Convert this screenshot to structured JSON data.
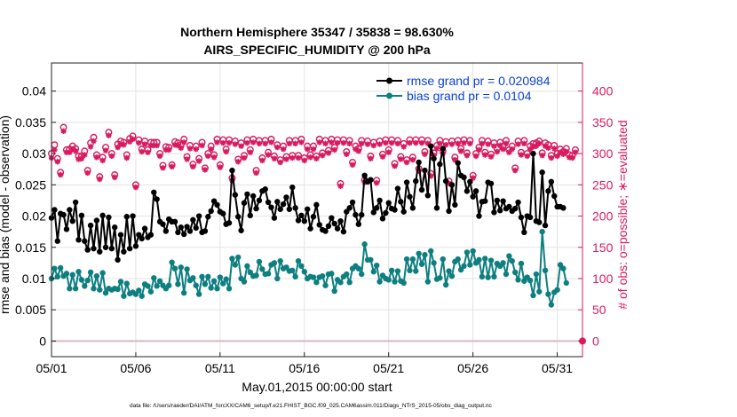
{
  "chart_data": {
    "type": "line",
    "title": "Northern Hemisphere 35347 / 35838 = 98.630%",
    "subtitle": "AIRS_SPECIFIC_HUMIDITY @ 200 hPa",
    "xlabel": "May.01,2015 00:00:00 start",
    "ylabel": "rmse and bias (model - observation)",
    "y2label": "# of obs: o=possible; ∗=evaluated",
    "footnote": "data file: /Users/raeder/DAI/ATM_forcXX/CAM6_setup/f.e21.FHIST_BGC.f09_025.CAM6assim.011/Diags_NTrS_2015-05/obs_diag_output.nc",
    "xlim": [
      1,
      32.5
    ],
    "ylim": [
      -0.0025,
      0.0445
    ],
    "y2lim": [
      -25,
      445
    ],
    "grid": true,
    "xticks": [
      1,
      6,
      11,
      16,
      21,
      26,
      31
    ],
    "xtick_labels": [
      "05/01",
      "05/06",
      "05/11",
      "05/16",
      "05/21",
      "05/26",
      "05/31"
    ],
    "yticks": [
      0,
      0.005,
      0.01,
      0.015,
      0.02,
      0.025,
      0.03,
      0.035,
      0.04
    ],
    "ytick_labels": [
      "0",
      "0.005",
      "0.01",
      "0.015",
      "0.02",
      "0.025",
      "0.03",
      "0.035",
      "0.04"
    ],
    "y2ticks": [
      0,
      50,
      100,
      150,
      200,
      250,
      300,
      350,
      400
    ],
    "y2tick_labels": [
      "0",
      "50",
      "100",
      "150",
      "200",
      "250",
      "300",
      "350",
      "400"
    ],
    "colors": {
      "rmse": "#000000",
      "bias": "#0e7f80",
      "obs": "#d81b60",
      "legend_text": "#0a3fd6",
      "zero_line": "#d5b5c5",
      "grid": "#e3e3e3"
    },
    "legend_position": "top-right",
    "series": [
      {
        "name": "rmse grand pr = 0.020984",
        "axis": "left",
        "style": "line-dot",
        "values": [
          0.0197,
          0.021,
          0.016,
          0.0204,
          0.0202,
          0.0179,
          0.021,
          0.0192,
          0.0222,
          0.0162,
          0.0201,
          0.016,
          0.0146,
          0.0185,
          0.0148,
          0.0193,
          0.0143,
          0.0201,
          0.015,
          0.0198,
          0.0148,
          0.0182,
          0.013,
          0.017,
          0.0143,
          0.0199,
          0.0148,
          0.02,
          0.0152,
          0.017,
          0.0164,
          0.018,
          0.0166,
          0.017,
          0.0238,
          0.0227,
          0.0191,
          0.0187,
          0.0176,
          0.0195,
          0.0191,
          0.0191,
          0.0174,
          0.0182,
          0.0171,
          0.0183,
          0.0176,
          0.0194,
          0.0181,
          0.02,
          0.0174,
          0.0176,
          0.0199,
          0.0208,
          0.0224,
          0.0218,
          0.0207,
          0.0204,
          0.0187,
          0.0189,
          0.0273,
          0.0234,
          0.0199,
          0.0177,
          0.0221,
          0.0235,
          0.0201,
          0.0232,
          0.0212,
          0.0225,
          0.024,
          0.0243,
          0.0222,
          0.0214,
          0.0197,
          0.0223,
          0.0211,
          0.0219,
          0.023,
          0.0211,
          0.0246,
          0.0213,
          0.0193,
          0.0201,
          0.0192,
          0.0211,
          0.018,
          0.0199,
          0.0218,
          0.0186,
          0.0178,
          0.0176,
          0.0184,
          0.0197,
          0.0188,
          0.018,
          0.0192,
          0.0175,
          0.0207,
          0.0213,
          0.0222,
          0.0202,
          0.0187,
          0.0202,
          0.0265,
          0.0255,
          0.0258,
          0.0206,
          0.0213,
          0.0225,
          0.0196,
          0.0205,
          0.0221,
          0.0212,
          0.021,
          0.0244,
          0.0223,
          0.0207,
          0.0254,
          0.0231,
          0.0213,
          0.0256,
          0.0286,
          0.0242,
          0.0273,
          0.0233,
          0.0312,
          0.0292,
          0.0213,
          0.0283,
          0.0308,
          0.0256,
          0.0208,
          0.025,
          0.0218,
          0.0285,
          0.0265,
          0.0262,
          0.024,
          0.0255,
          0.0231,
          0.024,
          0.02,
          0.0223,
          0.0224,
          0.0254,
          0.0252,
          0.0206,
          0.0225,
          0.0209,
          0.0224,
          0.0212,
          0.0215,
          0.0208,
          0.0212,
          0.0222,
          0.0198,
          0.0174,
          0.02,
          0.0198,
          0.03,
          0.0192,
          0.019,
          0.027,
          0.0185,
          0.024,
          0.0255,
          0.0232,
          0.0215,
          0.0215,
          0.0213
        ]
      },
      {
        "name": "bias grand pr = 0.0104",
        "axis": "left",
        "style": "line-dot",
        "values": [
          0.01,
          0.0116,
          0.0103,
          0.0117,
          0.0104,
          0.0108,
          0.0084,
          0.0106,
          0.0084,
          0.0111,
          0.0098,
          0.0088,
          0.0097,
          0.011,
          0.0084,
          0.0104,
          0.0082,
          0.0109,
          0.0077,
          0.0084,
          0.0082,
          0.0084,
          0.0083,
          0.0095,
          0.0072,
          0.0092,
          0.0076,
          0.0078,
          0.0075,
          0.0081,
          0.0072,
          0.0091,
          0.0088,
          0.0079,
          0.0101,
          0.0088,
          0.0096,
          0.0089,
          0.0084,
          0.0089,
          0.0126,
          0.0116,
          0.0091,
          0.0118,
          0.0077,
          0.0115,
          0.0097,
          0.0101,
          0.0089,
          0.0075,
          0.0103,
          0.0091,
          0.0103,
          0.0085,
          0.0096,
          0.0084,
          0.0102,
          0.0092,
          0.0099,
          0.0084,
          0.0132,
          0.0122,
          0.0134,
          0.01,
          0.0095,
          0.012,
          0.011,
          0.0104,
          0.0105,
          0.0127,
          0.0115,
          0.0107,
          0.0108,
          0.0122,
          0.0125,
          0.01,
          0.0128,
          0.0116,
          0.0118,
          0.0112,
          0.0113,
          0.0103,
          0.0128,
          0.012,
          0.0111,
          0.01,
          0.0103,
          0.0102,
          0.0094,
          0.0102,
          0.0104,
          0.0089,
          0.0107,
          0.0108,
          0.008,
          0.0098,
          0.0094,
          0.0103,
          0.0107,
          0.0094,
          0.0116,
          0.012,
          0.0116,
          0.0107,
          0.0155,
          0.013,
          0.013,
          0.0111,
          0.0121,
          0.0095,
          0.0105,
          0.01,
          0.0098,
          0.0113,
          0.0095,
          0.0112,
          0.0096,
          0.0093,
          0.0131,
          0.0113,
          0.0131,
          0.0112,
          0.014,
          0.0123,
          0.0138,
          0.0095,
          0.0144,
          0.0125,
          0.0099,
          0.0101,
          0.0131,
          0.009,
          0.0112,
          0.0104,
          0.0127,
          0.0131,
          0.0114,
          0.012,
          0.0142,
          0.0122,
          0.0144,
          0.0125,
          0.013,
          0.0103,
          0.0132,
          0.0102,
          0.0129,
          0.0103,
          0.0124,
          0.012,
          0.0125,
          0.0107,
          0.0136,
          0.0128,
          0.011,
          0.0098,
          0.0124,
          0.0096,
          0.0102,
          0.0097,
          0.0073,
          0.0107,
          0.0079,
          0.0175,
          0.0113,
          0.0075,
          0.0058,
          0.0078,
          0.0082,
          0.0122,
          0.0116,
          0.0093
        ]
      },
      {
        "name": "# of obs: possible",
        "axis": "right",
        "style": "marker-o",
        "values": [
          300,
          314,
          292,
          270,
          342,
          306,
          307,
          312,
          308,
          296,
          296,
          304,
          273,
          317,
          326,
          298,
          263,
          294,
          310,
          334,
          300,
          266,
          315,
          320,
          318,
          298,
          324,
          328,
          250,
          322,
          307,
          320,
          306,
          318,
          318,
          318,
          300,
          281,
          311,
          310,
          282,
          319,
          317,
          314,
          323,
          295,
          313,
          283,
          312,
          292,
          318,
          277,
          300,
          312,
          298,
          323,
          282,
          322,
          307,
          322,
          261,
          320,
          291,
          317,
          297,
          322,
          306,
          323,
          273,
          321,
          293,
          321,
          302,
          323,
          296,
          314,
          290,
          312,
          295,
          321,
          297,
          321,
          297,
          323,
          293,
          312,
          298,
          312,
          296,
          323,
          301,
          321,
          305,
          323,
          310,
          322,
          252,
          322,
          303,
          321,
          286,
          312,
          308,
          321,
          258,
          320,
          296,
          318,
          257,
          320,
          299,
          322,
          306,
          322,
          284,
          321,
          295,
          316,
          290,
          322,
          294,
          322,
          276,
          322,
          303,
          321,
          268,
          301,
          313,
          321,
          304,
          319,
          256,
          320,
          294,
          321,
          308,
          322,
          301,
          321,
          265,
          300,
          310,
          321,
          302,
          320,
          299,
          317,
          308,
          318,
          312,
          321,
          306,
          312,
          277,
          320,
          302,
          321,
          300,
          312,
          316,
          317,
          320,
          301,
          317,
          314,
          297,
          313,
          300,
          307,
          303,
          308,
          298,
          297,
          306
        ]
      },
      {
        "name": "# of obs: evaluated",
        "axis": "right",
        "style": "marker-star",
        "values": [
          293,
          306,
          287,
          266,
          336,
          302,
          302,
          307,
          304,
          291,
          292,
          298,
          269,
          311,
          320,
          294,
          259,
          289,
          305,
          329,
          296,
          262,
          310,
          315,
          314,
          293,
          319,
          323,
          246,
          317,
          303,
          315,
          302,
          313,
          313,
          313,
          296,
          277,
          306,
          306,
          279,
          314,
          313,
          309,
          318,
          291,
          308,
          279,
          307,
          288,
          313,
          274,
          296,
          307,
          294,
          318,
          278,
          317,
          303,
          317,
          257,
          315,
          287,
          312,
          293,
          317,
          302,
          318,
          269,
          316,
          289,
          316,
          298,
          318,
          292,
          310,
          286,
          307,
          291,
          316,
          293,
          316,
          293,
          318,
          289,
          307,
          294,
          307,
          292,
          318,
          297,
          316,
          301,
          318,
          306,
          317,
          248,
          317,
          299,
          316,
          282,
          307,
          304,
          316,
          254,
          315,
          292,
          313,
          253,
          315,
          295,
          317,
          302,
          317,
          280,
          316,
          291,
          311,
          286,
          317,
          290,
          317,
          272,
          317,
          299,
          316,
          264,
          297,
          308,
          316,
          300,
          314,
          252,
          315,
          290,
          316,
          304,
          317,
          297,
          316,
          261,
          296,
          306,
          316,
          298,
          315,
          295,
          312,
          303,
          313,
          307,
          316,
          302,
          307,
          273,
          315,
          298,
          316,
          296,
          307,
          311,
          312,
          316,
          297,
          312,
          309,
          293,
          308,
          296,
          302,
          299,
          303,
          294,
          293,
          302
        ]
      }
    ],
    "zero_marker": {
      "x": 32.5,
      "y2": 0
    }
  }
}
